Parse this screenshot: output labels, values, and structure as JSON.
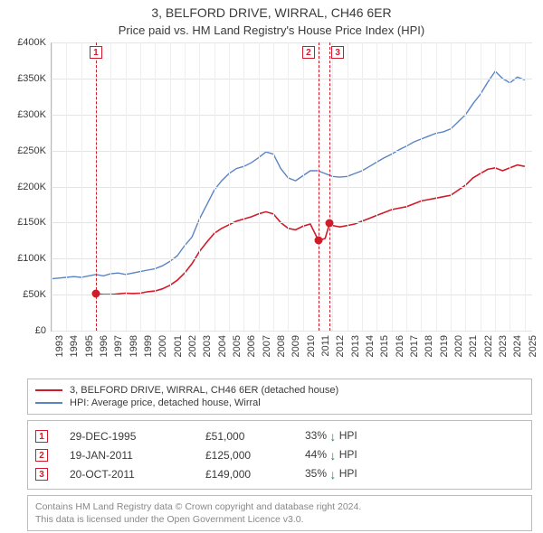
{
  "title": "3, BELFORD DRIVE, WIRRAL, CH46 6ER",
  "subtitle": "Price paid vs. HM Land Registry's House Price Index (HPI)",
  "chart": {
    "type": "line",
    "x_years": [
      1993,
      1994,
      1995,
      1996,
      1997,
      1998,
      1999,
      2000,
      2001,
      2002,
      2003,
      2004,
      2005,
      2006,
      2007,
      2008,
      2009,
      2010,
      2011,
      2012,
      2013,
      2014,
      2015,
      2016,
      2017,
      2018,
      2019,
      2020,
      2021,
      2022,
      2023,
      2024,
      2025
    ],
    "xlim": [
      1993,
      2025.5
    ],
    "ylim": [
      0,
      400000
    ],
    "ytick_step": 50000,
    "ytick_labels": [
      "£0",
      "£50K",
      "£100K",
      "£150K",
      "£200K",
      "£250K",
      "£300K",
      "£350K",
      "£400K"
    ],
    "grid_color_h": "#e4e4e4",
    "grid_color_v": "#eeeeee",
    "axis_color": "#b8b8b8",
    "background_color": "#ffffff",
    "series": [
      {
        "name": "3, BELFORD DRIVE, WIRRAL, CH46 6ER (detached house)",
        "color": "#d01c2a",
        "width": 1.6,
        "points": [
          [
            1995.99,
            51000
          ],
          [
            1996.5,
            50000
          ],
          [
            1997.0,
            50000
          ],
          [
            1997.5,
            51000
          ],
          [
            1998.0,
            52000
          ],
          [
            1998.5,
            51500
          ],
          [
            1999.0,
            52000
          ],
          [
            1999.5,
            54000
          ],
          [
            2000.0,
            55000
          ],
          [
            2000.5,
            58000
          ],
          [
            2001.0,
            63000
          ],
          [
            2001.5,
            70000
          ],
          [
            2002.0,
            80000
          ],
          [
            2002.5,
            93000
          ],
          [
            2003.0,
            110000
          ],
          [
            2003.5,
            123000
          ],
          [
            2004.0,
            135000
          ],
          [
            2004.5,
            142000
          ],
          [
            2005.0,
            147000
          ],
          [
            2005.5,
            152000
          ],
          [
            2006.0,
            155000
          ],
          [
            2006.5,
            158000
          ],
          [
            2007.0,
            162000
          ],
          [
            2007.5,
            165000
          ],
          [
            2008.0,
            162000
          ],
          [
            2008.5,
            150000
          ],
          [
            2009.0,
            142000
          ],
          [
            2009.5,
            140000
          ],
          [
            2010.0,
            145000
          ],
          [
            2010.5,
            148000
          ],
          [
            2011.05,
            125000
          ],
          [
            2011.5,
            128000
          ],
          [
            2011.8,
            149000
          ],
          [
            2012.0,
            146000
          ],
          [
            2012.5,
            144000
          ],
          [
            2013.0,
            146000
          ],
          [
            2013.5,
            148000
          ],
          [
            2014.0,
            152000
          ],
          [
            2014.5,
            156000
          ],
          [
            2015.0,
            160000
          ],
          [
            2015.5,
            164000
          ],
          [
            2016.0,
            168000
          ],
          [
            2016.5,
            170000
          ],
          [
            2017.0,
            172000
          ],
          [
            2017.5,
            176000
          ],
          [
            2018.0,
            180000
          ],
          [
            2018.5,
            182000
          ],
          [
            2019.0,
            184000
          ],
          [
            2019.5,
            186000
          ],
          [
            2020.0,
            188000
          ],
          [
            2020.5,
            195000
          ],
          [
            2021.0,
            202000
          ],
          [
            2021.5,
            212000
          ],
          [
            2022.0,
            218000
          ],
          [
            2022.5,
            224000
          ],
          [
            2023.0,
            226000
          ],
          [
            2023.5,
            222000
          ],
          [
            2024.0,
            226000
          ],
          [
            2024.5,
            230000
          ],
          [
            2025.0,
            228000
          ]
        ]
      },
      {
        "name": "HPI: Average price, detached house, Wirral",
        "color": "#5b84c4",
        "width": 1.4,
        "points": [
          [
            1993.0,
            72000
          ],
          [
            1993.5,
            73000
          ],
          [
            1994.0,
            74000
          ],
          [
            1994.5,
            75000
          ],
          [
            1995.0,
            74000
          ],
          [
            1995.5,
            76000
          ],
          [
            1996.0,
            78000
          ],
          [
            1996.5,
            76000
          ],
          [
            1997.0,
            79000
          ],
          [
            1997.5,
            80000
          ],
          [
            1998.0,
            78000
          ],
          [
            1998.5,
            80000
          ],
          [
            1999.0,
            82000
          ],
          [
            1999.5,
            84000
          ],
          [
            2000.0,
            86000
          ],
          [
            2000.5,
            90000
          ],
          [
            2001.0,
            96000
          ],
          [
            2001.5,
            104000
          ],
          [
            2002.0,
            118000
          ],
          [
            2002.5,
            130000
          ],
          [
            2003.0,
            155000
          ],
          [
            2003.5,
            175000
          ],
          [
            2004.0,
            195000
          ],
          [
            2004.5,
            208000
          ],
          [
            2005.0,
            218000
          ],
          [
            2005.5,
            225000
          ],
          [
            2006.0,
            228000
          ],
          [
            2006.5,
            233000
          ],
          [
            2007.0,
            240000
          ],
          [
            2007.5,
            248000
          ],
          [
            2008.0,
            245000
          ],
          [
            2008.5,
            225000
          ],
          [
            2009.0,
            212000
          ],
          [
            2009.5,
            208000
          ],
          [
            2010.0,
            215000
          ],
          [
            2010.5,
            222000
          ],
          [
            2011.0,
            222000
          ],
          [
            2011.5,
            218000
          ],
          [
            2012.0,
            214000
          ],
          [
            2012.5,
            213000
          ],
          [
            2013.0,
            214000
          ],
          [
            2013.5,
            218000
          ],
          [
            2014.0,
            222000
          ],
          [
            2014.5,
            228000
          ],
          [
            2015.0,
            234000
          ],
          [
            2015.5,
            240000
          ],
          [
            2016.0,
            245000
          ],
          [
            2016.5,
            251000
          ],
          [
            2017.0,
            256000
          ],
          [
            2017.5,
            262000
          ],
          [
            2018.0,
            266000
          ],
          [
            2018.5,
            270000
          ],
          [
            2019.0,
            274000
          ],
          [
            2019.5,
            276000
          ],
          [
            2020.0,
            280000
          ],
          [
            2020.5,
            290000
          ],
          [
            2021.0,
            300000
          ],
          [
            2021.5,
            315000
          ],
          [
            2022.0,
            328000
          ],
          [
            2022.5,
            345000
          ],
          [
            2023.0,
            360000
          ],
          [
            2023.5,
            350000
          ],
          [
            2024.0,
            344000
          ],
          [
            2024.5,
            352000
          ],
          [
            2025.0,
            348000
          ]
        ]
      }
    ],
    "sale_markers": [
      {
        "n": "1",
        "x": 1995.99,
        "y": 51000
      },
      {
        "n": "2",
        "x": 2011.05,
        "y": 125000
      },
      {
        "n": "3",
        "x": 2011.8,
        "y": 149000
      }
    ],
    "sale_dot_color": "#d01c2a"
  },
  "legend": {
    "items": [
      {
        "color": "#d01c2a",
        "label": "3, BELFORD DRIVE, WIRRAL, CH46 6ER (detached house)"
      },
      {
        "color": "#5b84c4",
        "label": "HPI: Average price, detached house, Wirral"
      }
    ]
  },
  "sales": [
    {
      "n": "1",
      "date": "29-DEC-1995",
      "price": "£51,000",
      "delta": "33%",
      "arrow_color": "#2a8a3a",
      "suffix": "HPI"
    },
    {
      "n": "2",
      "date": "19-JAN-2011",
      "price": "£125,000",
      "delta": "44%",
      "arrow_color": "#2a8a3a",
      "suffix": "HPI"
    },
    {
      "n": "3",
      "date": "20-OCT-2011",
      "price": "£149,000",
      "delta": "35%",
      "arrow_color": "#2a8a3a",
      "suffix": "HPI"
    }
  ],
  "footer": {
    "line1": "Contains HM Land Registry data © Crown copyright and database right 2024.",
    "line2": "This data is licensed under the Open Government Licence v3.0."
  }
}
